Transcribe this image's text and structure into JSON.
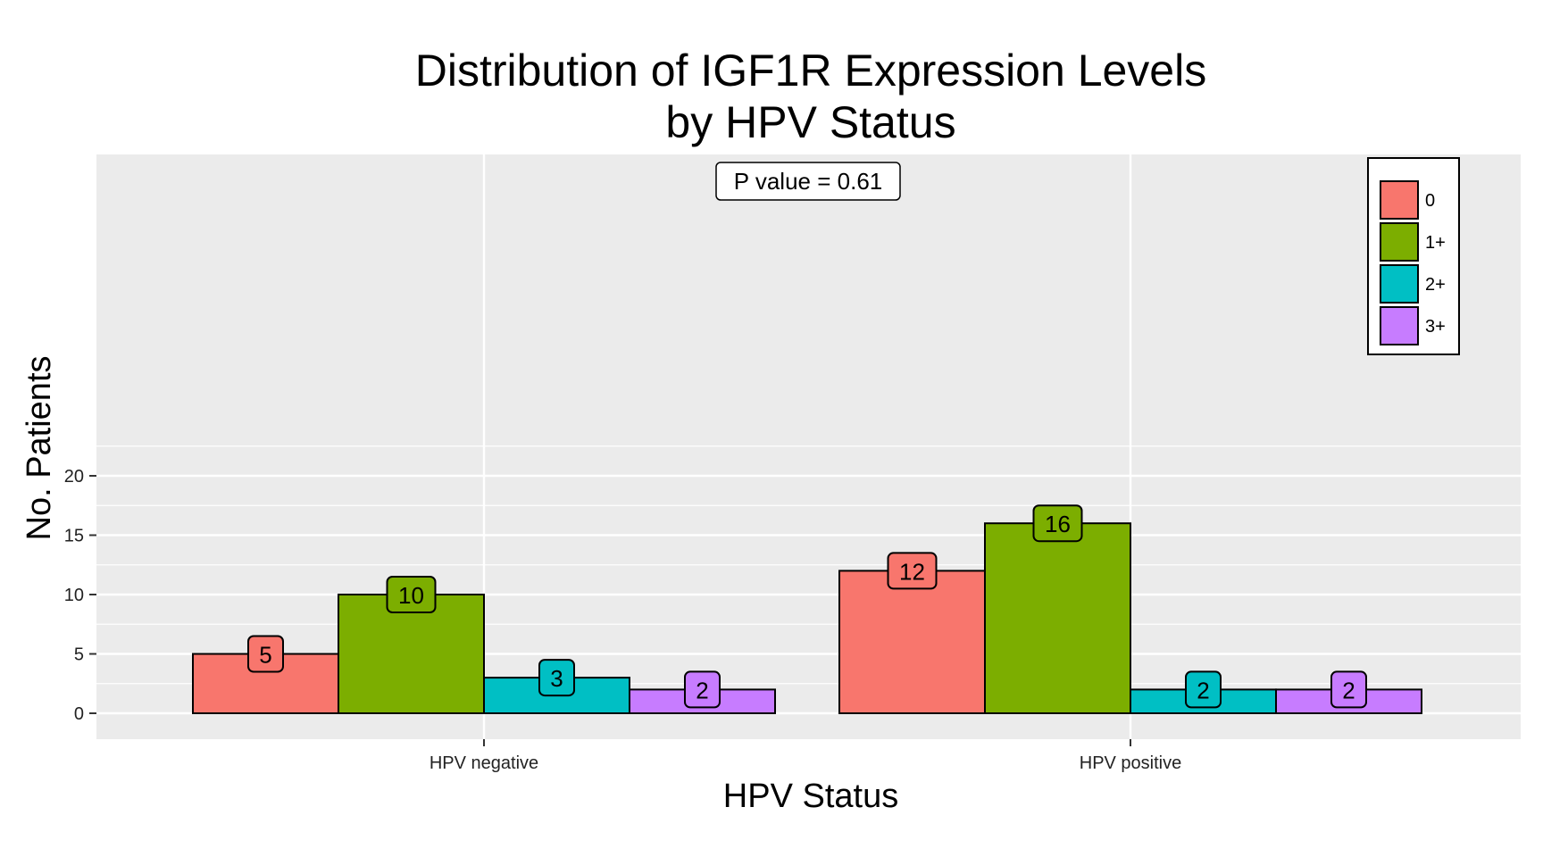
{
  "chart_data": {
    "type": "bar",
    "title": [
      "Distribution of IGF1R Expression Levels",
      "by HPV Status"
    ],
    "xlabel": "HPV Status",
    "ylabel": "No. Patients",
    "categories": [
      "HPV negative",
      "HPV positive"
    ],
    "series": [
      {
        "name": "0",
        "color": "#F8766D",
        "values": [
          5,
          12
        ]
      },
      {
        "name": "1+",
        "color": "#7CAE00",
        "values": [
          10,
          16
        ]
      },
      {
        "name": "2+",
        "color": "#00BFC4",
        "values": [
          3,
          2
        ]
      },
      {
        "name": "3+",
        "color": "#C77CFF",
        "values": [
          2,
          2
        ]
      }
    ],
    "ylim": [
      0,
      23
    ],
    "yticks": [
      0,
      5,
      10,
      15,
      20
    ],
    "annotation": "P value = 0.61",
    "grid": true,
    "legend_position": "top-right",
    "panel_background": "#EBEBEB"
  }
}
